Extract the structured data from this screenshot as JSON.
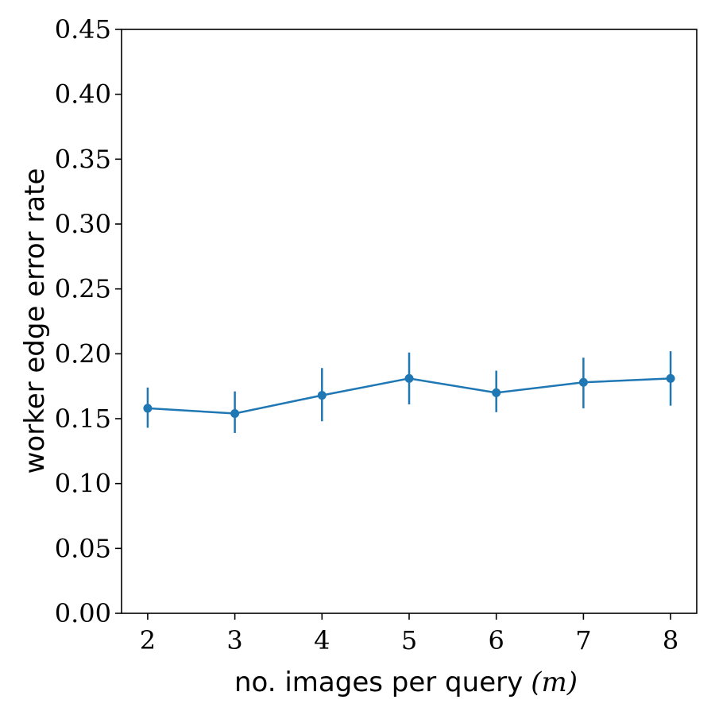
{
  "chart_data": {
    "type": "line",
    "title": "",
    "xlabel": "no. images per query",
    "xlabel_math": "(m)",
    "ylabel": "worker edge error rate",
    "x": [
      2,
      3,
      4,
      5,
      6,
      7,
      8
    ],
    "xlim": [
      1.7,
      8.3
    ],
    "ylim": [
      0.0,
      0.45
    ],
    "yticks": [
      "0.00",
      "0.05",
      "0.10",
      "0.15",
      "0.20",
      "0.25",
      "0.30",
      "0.35",
      "0.40",
      "0.45"
    ],
    "xticks": [
      "2",
      "3",
      "4",
      "5",
      "6",
      "7",
      "8"
    ],
    "grid": false,
    "series": [
      {
        "color": "#1f77b4",
        "values": [
          0.158,
          0.154,
          0.168,
          0.181,
          0.17,
          0.178,
          0.181
        ],
        "error_low": [
          0.143,
          0.139,
          0.148,
          0.161,
          0.155,
          0.158,
          0.16
        ],
        "error_high": [
          0.174,
          0.171,
          0.189,
          0.201,
          0.187,
          0.197,
          0.202
        ]
      }
    ]
  }
}
